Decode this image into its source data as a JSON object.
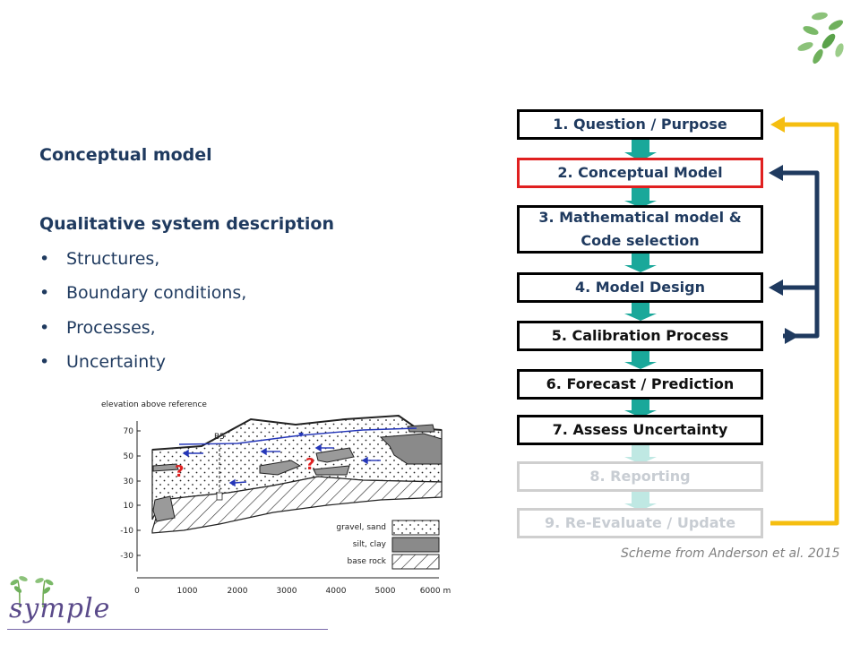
{
  "left": {
    "heading1": "Conceptual model",
    "heading2": "Qualitative system description",
    "bullets": [
      "Structures,",
      "Boundary conditions,",
      "Processes,",
      "Uncertainty"
    ]
  },
  "cross_section": {
    "title": "elevation above reference",
    "y_ticks": [
      "70",
      "50",
      "30",
      "10",
      "-10",
      "-30"
    ],
    "x_ticks": [
      "0",
      "1000",
      "2000",
      "3000",
      "4000",
      "5000",
      "6000 m"
    ],
    "well_label": "B5",
    "question_mark": "?",
    "legend": [
      "gravel, sand",
      "silt, clay",
      "base rock"
    ]
  },
  "workflow": {
    "steps": [
      {
        "label": "1. Question / Purpose"
      },
      {
        "label": "2. Conceptual Model"
      },
      {
        "label": "3. Mathematical model &",
        "label2": "Code selection"
      },
      {
        "label": "4. Model Design"
      },
      {
        "label": "5. Calibration Process"
      },
      {
        "label": "6. Forecast / Prediction"
      },
      {
        "label": "7. Assess Uncertainty"
      },
      {
        "label": "8. Reporting"
      },
      {
        "label": "9. Re-Evaluate / Update"
      }
    ],
    "colors": {
      "connector": "#1aa89a",
      "feedback_navy": "#1f3a5f",
      "feedback_yellow": "#f5be10",
      "active_border": "#e02020"
    }
  },
  "caption": "Scheme from Anderson et al. 2015",
  "logo": {
    "text": "symple"
  }
}
